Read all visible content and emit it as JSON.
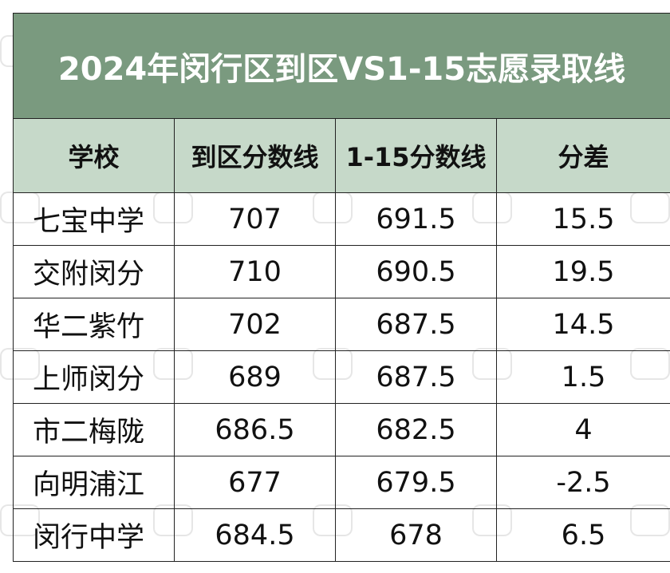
{
  "title": "2024年闵行区到区VS1-15志愿录取线",
  "columns": [
    "学校",
    "到区分数线",
    "1-15分数线",
    "分差"
  ],
  "rows": [
    {
      "school": "七宝中学",
      "district_line": "707",
      "line_1_15": "691.5",
      "diff": "15.5"
    },
    {
      "school": "交附闵分",
      "district_line": "710",
      "line_1_15": "690.5",
      "diff": "19.5"
    },
    {
      "school": "华二紫竹",
      "district_line": "702",
      "line_1_15": "687.5",
      "diff": "14.5"
    },
    {
      "school": "上师闵分",
      "district_line": "689",
      "line_1_15": "687.5",
      "diff": "1.5"
    },
    {
      "school": "市二梅陇",
      "district_line": "686.5",
      "line_1_15": "682.5",
      "diff": "4"
    },
    {
      "school": "向明浦江",
      "district_line": "677",
      "line_1_15": "679.5",
      "diff": "-2.5"
    },
    {
      "school": "闵行中学",
      "district_line": "684.5",
      "line_1_15": "678",
      "diff": "6.5"
    }
  ],
  "colors": {
    "title_bg": "#7a9a7f",
    "header_bg": "#c6d9c9",
    "border": "#222222"
  }
}
